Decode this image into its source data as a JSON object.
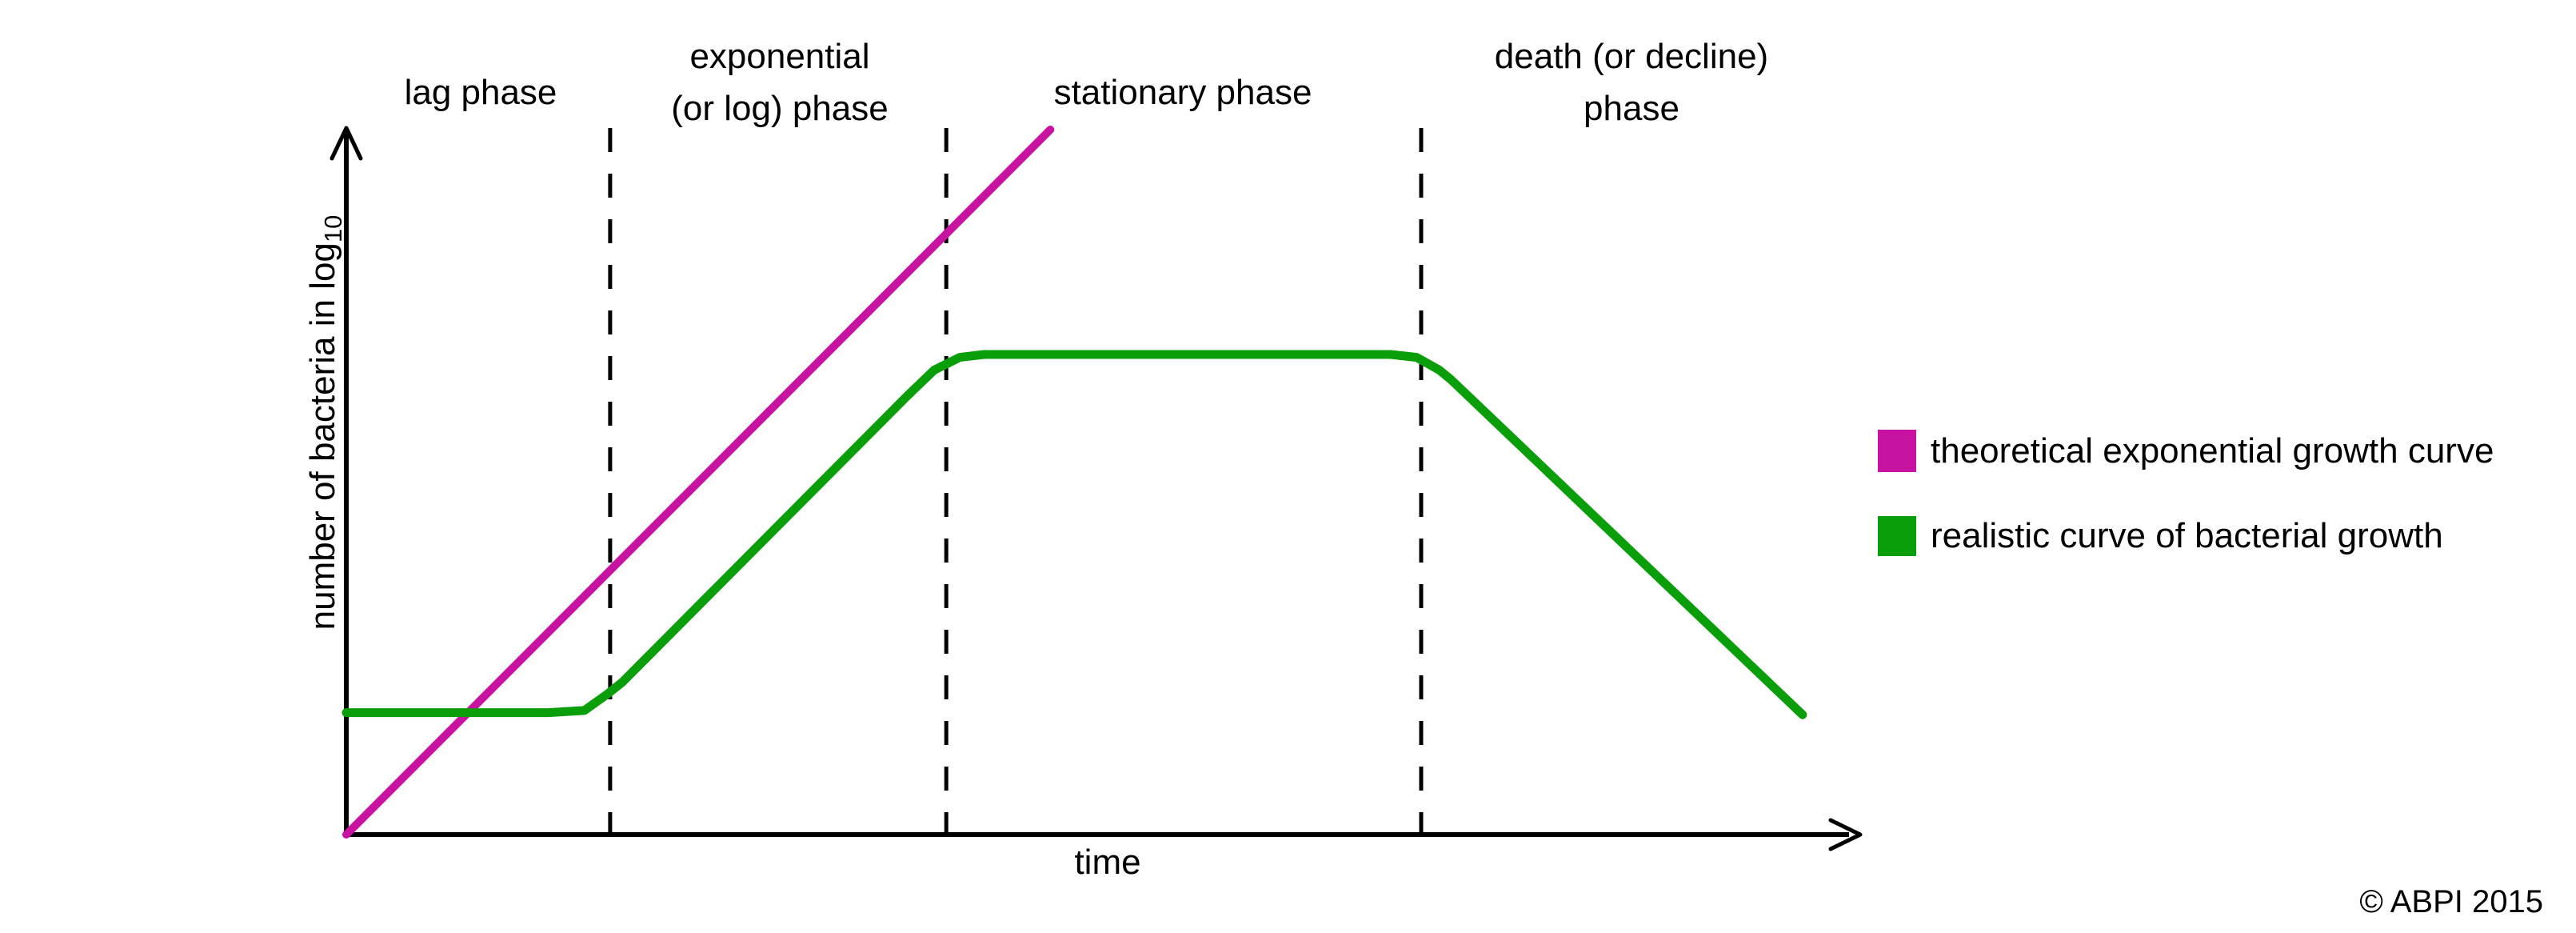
{
  "chart_data": {
    "type": "line",
    "title": "",
    "xlabel": "time",
    "ylabel": "number of bacteria in log10",
    "ylabel_parts": {
      "text": "number of bacteria in log",
      "subscript": "10"
    },
    "x_ticks": [],
    "y_ticks": [],
    "xlim": [
      0,
      1
    ],
    "ylim": [
      0,
      1
    ],
    "grid": false,
    "legend_position": "right",
    "phase_boundaries_x": [
      0.175,
      0.398,
      0.713
    ],
    "phases": [
      {
        "name": "lag phase",
        "label_lines": [
          "lag phase"
        ],
        "x_range": [
          0,
          0.175
        ]
      },
      {
        "name": "exponential (or log) phase",
        "label_lines": [
          "exponential",
          "(or log) phase"
        ],
        "x_range": [
          0.175,
          0.398
        ]
      },
      {
        "name": "stationary phase",
        "label_lines": [
          "stationary phase"
        ],
        "x_range": [
          0.398,
          0.713
        ]
      },
      {
        "name": "death (or decline) phase",
        "label_lines": [
          "death (or decline)",
          "phase"
        ],
        "x_range": [
          0.713,
          1
        ]
      }
    ],
    "series": [
      {
        "name": "theoretical exponential growth curve",
        "color": "#c712a2",
        "shape": "straight rising line from origin",
        "points": [
          [
            0,
            0
          ],
          [
            0.467,
            1
          ]
        ]
      },
      {
        "name": "realistic curve of bacterial growth",
        "color": "#0b9e0b",
        "shape": "lag plateau, exponential rise, stationary plateau, decline",
        "points": [
          [
            0.0,
            0.173
          ],
          [
            0.134,
            0.173
          ],
          [
            0.158,
            0.176
          ],
          [
            0.173,
            0.199
          ],
          [
            0.183,
            0.216
          ],
          [
            0.372,
            0.622
          ],
          [
            0.39,
            0.659
          ],
          [
            0.407,
            0.677
          ],
          [
            0.423,
            0.681
          ],
          [
            0.693,
            0.681
          ],
          [
            0.71,
            0.677
          ],
          [
            0.725,
            0.659
          ],
          [
            0.733,
            0.645
          ],
          [
            0.966,
            0.17
          ]
        ]
      }
    ]
  },
  "footer": {
    "copyright": "© ABPI 2015"
  }
}
